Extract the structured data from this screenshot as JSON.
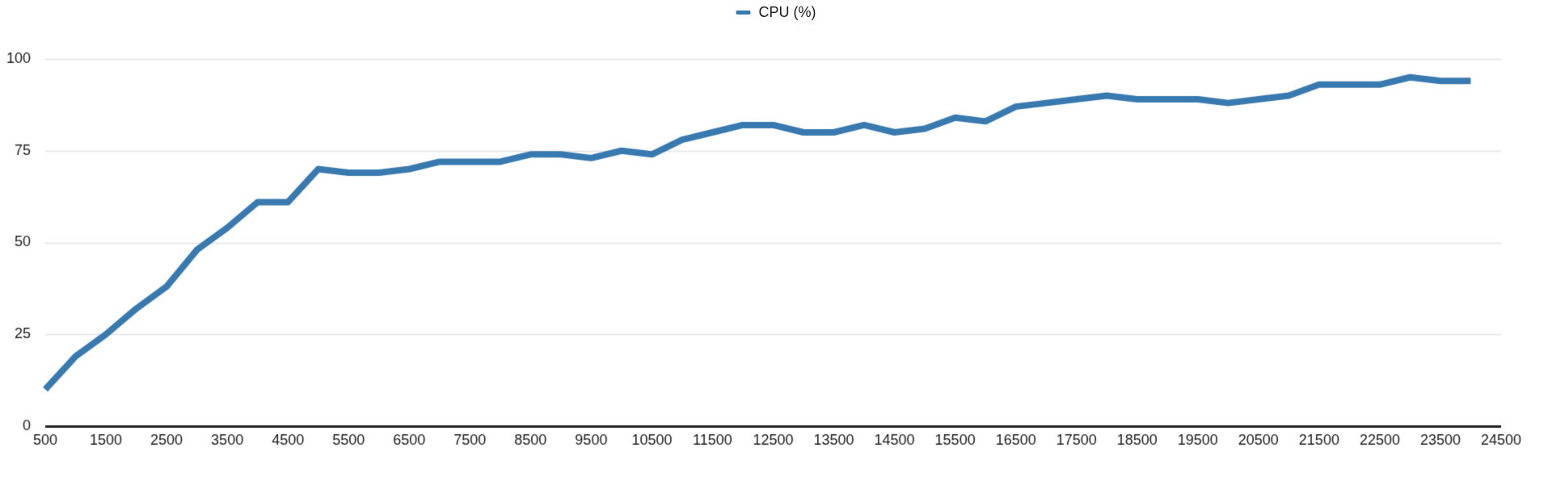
{
  "legend": {
    "label": "CPU (%)"
  },
  "chart_data": {
    "type": "line",
    "title": "",
    "xlabel": "",
    "ylabel": "",
    "grid": true,
    "legend_position": "top-center",
    "xlim": [
      500,
      24500
    ],
    "ylim": [
      0,
      100
    ],
    "x_ticks": [
      500,
      1500,
      2500,
      3500,
      4500,
      5500,
      6500,
      7500,
      8500,
      9500,
      10500,
      11500,
      12500,
      13500,
      14500,
      15500,
      16500,
      17500,
      18500,
      19500,
      20500,
      21500,
      22500,
      23500,
      24500
    ],
    "y_ticks": [
      0,
      25,
      50,
      75,
      100
    ],
    "series": [
      {
        "name": "CPU (%)",
        "color": "#3879b0",
        "x": [
          500,
          1000,
          1500,
          2000,
          2500,
          3000,
          3500,
          4000,
          4500,
          5000,
          5500,
          6000,
          6500,
          7000,
          7500,
          8000,
          8500,
          9000,
          9500,
          10000,
          10500,
          11000,
          11500,
          12000,
          12500,
          13000,
          13500,
          14000,
          14500,
          15000,
          15500,
          16000,
          16500,
          17000,
          17500,
          18000,
          18500,
          19000,
          19500,
          20000,
          20500,
          21000,
          21500,
          22000,
          22500,
          23000,
          23500,
          24000
        ],
        "values": [
          10,
          19,
          25,
          32,
          38,
          48,
          54,
          61,
          61,
          70,
          69,
          69,
          70,
          72,
          72,
          72,
          74,
          74,
          73,
          75,
          74,
          78,
          80,
          82,
          82,
          80,
          80,
          82,
          80,
          81,
          84,
          83,
          87,
          88,
          89,
          90,
          89,
          89,
          89,
          88,
          89,
          90,
          93,
          93,
          93,
          95,
          94,
          94
        ]
      }
    ],
    "styles": {
      "line_color": "#3879b0",
      "line_width": 8,
      "grid_color": "#e3e3e3",
      "axis_color": "#1f1f1f",
      "text_color": "#1a1a1a",
      "background": "#ffffff"
    }
  }
}
